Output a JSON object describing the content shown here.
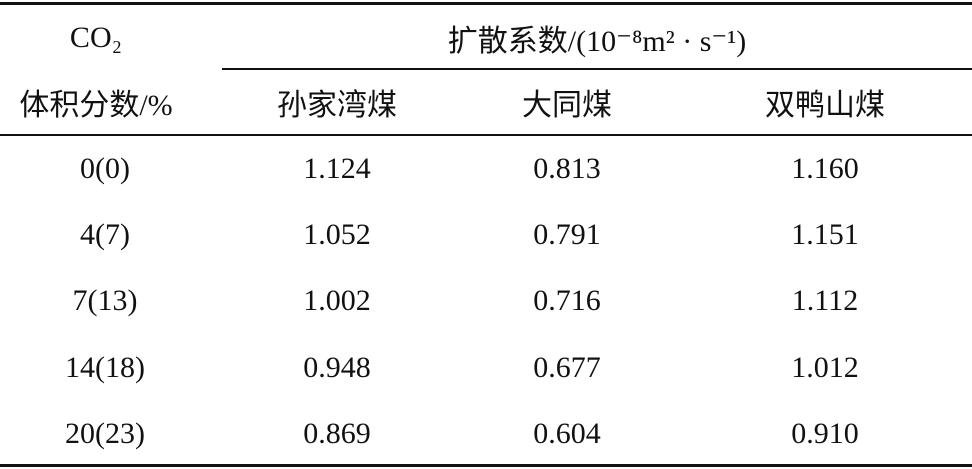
{
  "table": {
    "header": {
      "row_label": [
        "CO₂",
        "体积分数/%"
      ],
      "group": "扩散系数/(10⁻⁸m² · s⁻¹)",
      "columns": [
        "孙家湾煤",
        "大同煤",
        "双鸭山煤"
      ]
    },
    "rows": [
      [
        "0(0)",
        "1.124",
        "0.813",
        "1.160"
      ],
      [
        "4(7)",
        "1.052",
        "0.791",
        "1.151"
      ],
      [
        "7(13)",
        "1.002",
        "0.716",
        "1.112"
      ],
      [
        "14(18)",
        "0.948",
        "0.677",
        "1.012"
      ],
      [
        "20(23)",
        "0.869",
        "0.604",
        "0.910"
      ]
    ]
  }
}
